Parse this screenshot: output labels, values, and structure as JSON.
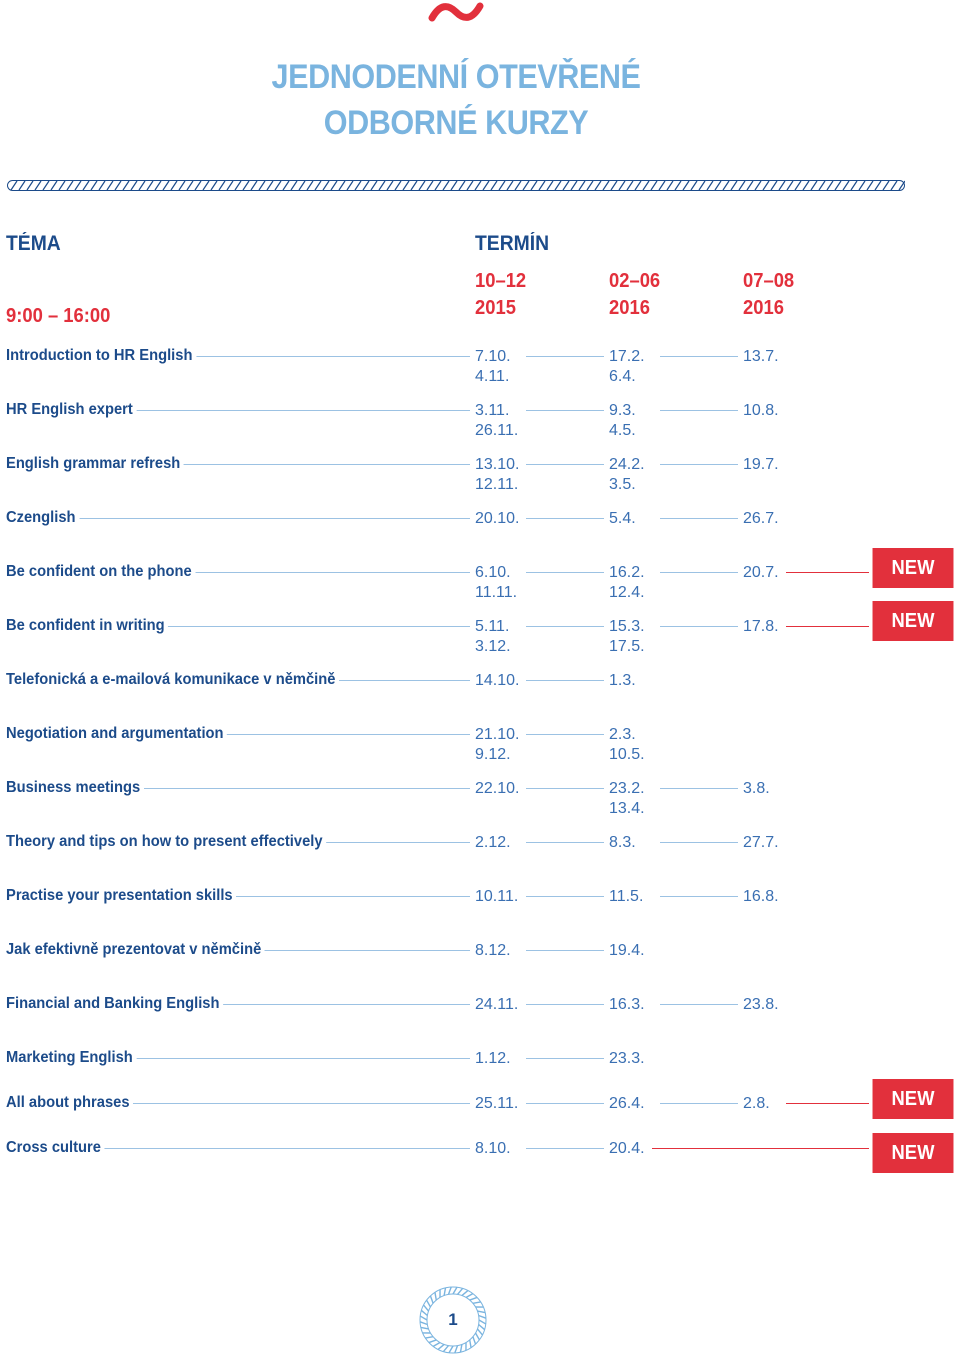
{
  "header": {
    "title_line1": "JEDNODENNÍ OTEVŘENÉ",
    "title_line2": "ODBORNÉ KURZY"
  },
  "columns": {
    "topic": "TÉMA",
    "term": "TERMÍN",
    "time": "9:00 – 16:00",
    "periods": [
      {
        "range": "10–12",
        "year": "2015"
      },
      {
        "range": "02–06",
        "year": "2016"
      },
      {
        "range": "07–08",
        "year": "2016"
      }
    ]
  },
  "badge_label": "NEW",
  "courses": [
    {
      "name": "Introduction to HR English",
      "dates": [
        "7.10.\n4.11.",
        "17.2.\n6.4.",
        "13.7."
      ],
      "new": false
    },
    {
      "name": "HR English expert",
      "dates": [
        "3.11.\n26.11.",
        "9.3.\n4.5.",
        "10.8."
      ],
      "new": false
    },
    {
      "name": "English grammar refresh",
      "dates": [
        "13.10.\n12.11.",
        "24.2.\n3.5.",
        "19.7."
      ],
      "new": false
    },
    {
      "name": "Czenglish",
      "dates": [
        "20.10.",
        "5.4.",
        "26.7."
      ],
      "new": false
    },
    {
      "name": "Be confident on the phone",
      "dates": [
        "6.10.\n11.11.",
        "16.2.\n12.4.",
        "20.7."
      ],
      "new": true
    },
    {
      "name": "Be confident in writing",
      "dates": [
        "5.11.\n3.12.",
        "15.3.\n17.5.",
        "17.8."
      ],
      "new": true
    },
    {
      "name": "Telefonická a e-mailová komunikace v němčině",
      "dates": [
        "14.10.",
        "1.3.",
        ""
      ],
      "new": false
    },
    {
      "name": "Negotiation and argumentation",
      "dates": [
        "21.10.\n9.12.",
        "2.3.\n10.5.",
        ""
      ],
      "new": false
    },
    {
      "name": "Business meetings",
      "dates": [
        "22.10.",
        "23.2.\n13.4.",
        "3.8."
      ],
      "new": false
    },
    {
      "name": "Theory and tips on how to present effectively",
      "dates": [
        "2.12.",
        "8.3.",
        "27.7."
      ],
      "new": false
    },
    {
      "name": "Practise your presentation skills",
      "dates": [
        "10.11.",
        "11.5.",
        "16.8."
      ],
      "new": false
    },
    {
      "name": "Jak efektivně prezentovat v němčině",
      "dates": [
        "8.12.",
        "19.4.",
        ""
      ],
      "new": false
    },
    {
      "name": "Financial and Banking English",
      "dates": [
        "24.11.",
        "16.3.",
        "23.8."
      ],
      "new": false
    },
    {
      "name": "Marketing English",
      "dates": [
        "1.12.",
        "23.3.",
        ""
      ],
      "new": false
    },
    {
      "name": "All about phrases",
      "dates": [
        "25.11.",
        "26.4.",
        "2.8."
      ],
      "new": true
    },
    {
      "name": "Cross culture",
      "dates": [
        "8.10.",
        "20.4.",
        ""
      ],
      "new": true
    }
  ],
  "page_number": "1",
  "colors": {
    "navy": "#1c4b8a",
    "light_blue": "#7ab4df",
    "red": "#e2303c",
    "date_blue": "#3a6fb2"
  }
}
